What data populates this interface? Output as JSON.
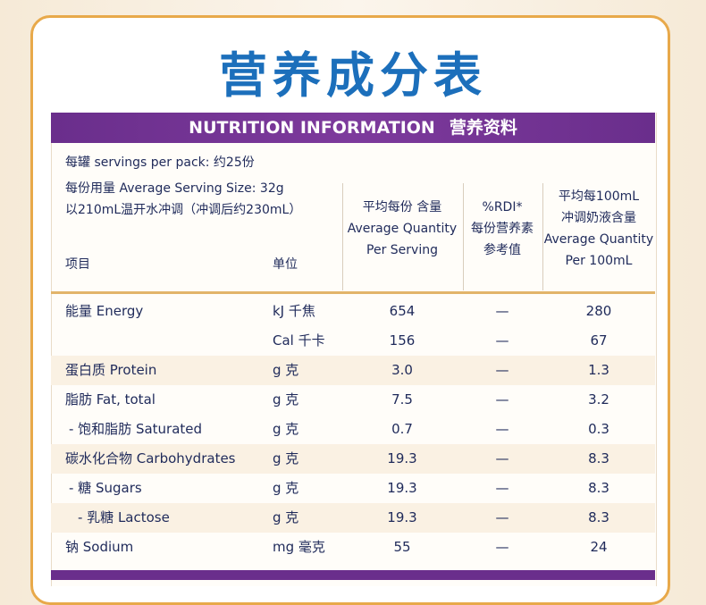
{
  "title": "营养成分表",
  "banner": {
    "en": "NUTRITION INFORMATION",
    "zh": "营养资料"
  },
  "info": [
    "每罐 servings per pack: 约25份",
    "每份用量 Average Serving Size: 32g",
    "以210mL温开水冲调（冲调后约230mL）"
  ],
  "table": {
    "headers": [
      [
        "项目"
      ],
      [
        "单位"
      ],
      [
        "平均每份 含量",
        "Average Quantity",
        "Per Serving"
      ],
      [
        "%RDI*",
        "每份营养素",
        "参考值"
      ],
      [
        "平均每100mL",
        "冲调奶液含量",
        "Average Quantity",
        "Per 100mL"
      ]
    ],
    "rows": [
      [
        "能量 Energy",
        "kJ 千焦",
        "654",
        "—",
        "280"
      ],
      [
        null,
        "Cal 千卡",
        "156",
        "—",
        "67"
      ],
      [
        "蛋白质 Protein",
        "g  克",
        "3.0",
        "—",
        "1.3"
      ],
      [
        "脂肪 Fat, total",
        "g  克",
        "7.5",
        "—",
        "3.2"
      ],
      [
        "- 饱和脂肪 Saturated",
        "g  克",
        "0.7",
        "—",
        "0.3"
      ],
      [
        "碳水化合物 Carbohydrates",
        "g  克",
        "19.3",
        "—",
        "8.3"
      ],
      [
        "- 糖 Sugars",
        "g  克",
        "19.3",
        "—",
        "8.3"
      ],
      [
        "- 乳糖 Lactose",
        "g  克",
        "19.3",
        "—",
        "8.3"
      ],
      [
        "钠 Sodium",
        "mg 毫克",
        "55",
        "—",
        "24"
      ]
    ]
  }
}
